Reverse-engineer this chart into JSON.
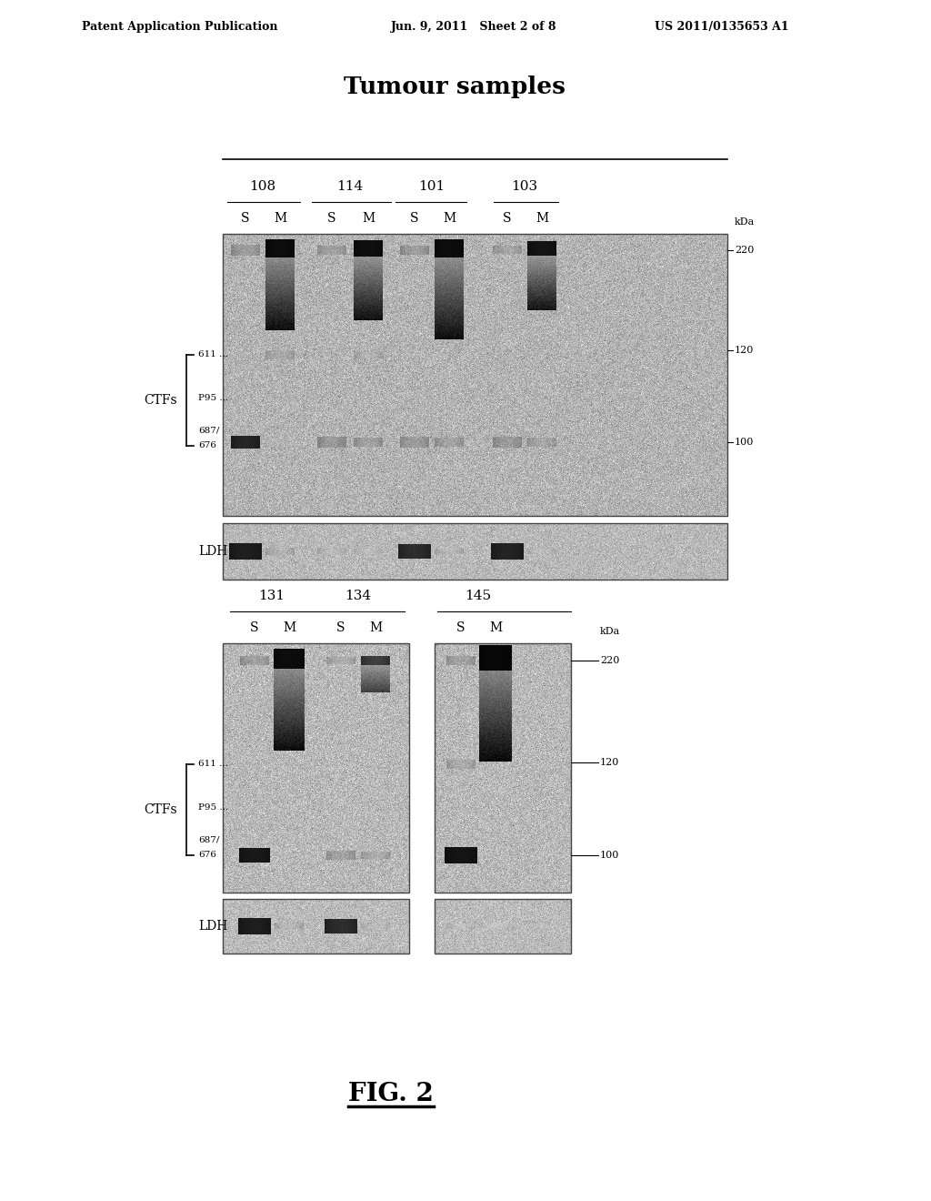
{
  "title": "Tumour samples",
  "header_text_left": "Patent Application Publication",
  "header_text_mid": "Jun. 9, 2011   Sheet 2 of 8",
  "header_text_right": "US 2011/0135653 A1",
  "fig_label": "FIG. 2",
  "bg_color": "#ffffff",
  "blot_bg": "#bbbbbb",
  "ldh_bg": "#c5c5c5",
  "panel1": {
    "samples": [
      "108",
      "114",
      "101",
      "103"
    ],
    "lanes": [
      "S",
      "M",
      "S",
      "M",
      "S",
      "M",
      "S",
      "M"
    ],
    "kda_labels": [
      "220",
      "120",
      "100"
    ]
  },
  "panel2": {
    "samples": [
      "131",
      "134",
      "145"
    ],
    "lanes": [
      "S",
      "M",
      "S",
      "M",
      "S",
      "M"
    ],
    "kda_labels": [
      "220",
      "120",
      "100"
    ]
  }
}
